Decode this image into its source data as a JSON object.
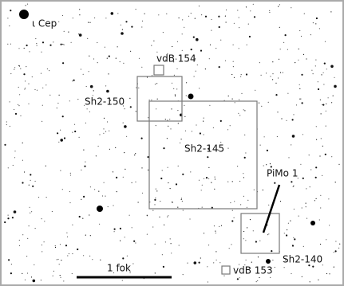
{
  "star_label": "ι Cep",
  "objects": [
    {
      "label": "vdB 154"
    },
    {
      "label": "Sh2-150"
    },
    {
      "label": "Sh2-145"
    },
    {
      "label": "PiMo 1"
    },
    {
      "label": "Sh2-140"
    },
    {
      "label": "vdB 153"
    }
  ],
  "scale_label": "1 fok"
}
